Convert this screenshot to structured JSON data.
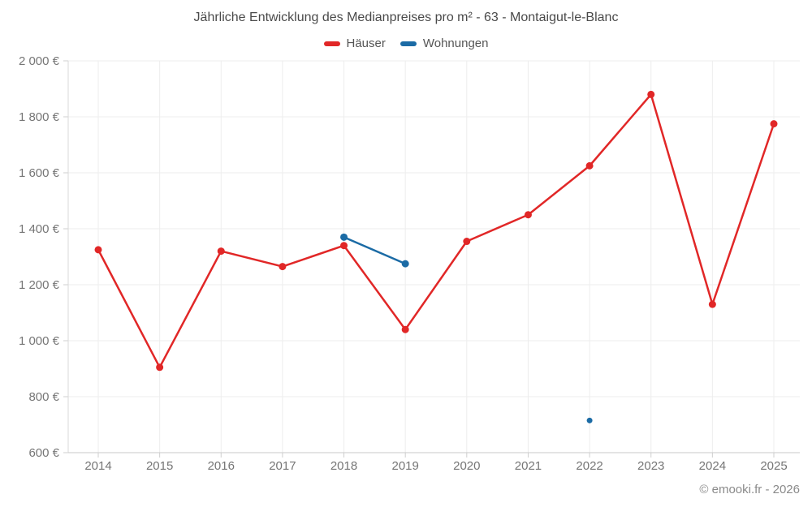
{
  "chart_data": {
    "type": "line",
    "title": "Jährliche Entwicklung des Medianpreises pro m² - 63 - Montaigut-le-Blanc",
    "x": [
      2014,
      2015,
      2016,
      2017,
      2018,
      2019,
      2020,
      2021,
      2022,
      2023,
      2024,
      2025
    ],
    "xtick_labels": [
      "2014",
      "2015",
      "2016",
      "2017",
      "2018",
      "2019",
      "2020",
      "2021",
      "2022",
      "2023",
      "2024",
      "2025"
    ],
    "series": [
      {
        "name": "Häuser",
        "color": "#e12727",
        "values": [
          1325,
          905,
          1320,
          1265,
          1340,
          1040,
          1355,
          1450,
          1625,
          1880,
          1130,
          1775
        ]
      },
      {
        "name": "Wohnungen",
        "color": "#1b6ba5",
        "values": [
          null,
          null,
          null,
          null,
          1370,
          1275,
          null,
          null,
          715,
          null,
          null,
          null
        ]
      }
    ],
    "ylim": [
      600,
      2000
    ],
    "ytick_step": 200,
    "yticks": [
      {
        "value": 2000,
        "label": "2 000 €"
      },
      {
        "value": 1800,
        "label": "1 800 €"
      },
      {
        "value": 1600,
        "label": "1 600 €"
      },
      {
        "value": 1400,
        "label": "1 400 €"
      },
      {
        "value": 1200,
        "label": "1 200 €"
      },
      {
        "value": 1000,
        "label": "1 000 €"
      },
      {
        "value": 800,
        "label": "800 €"
      },
      {
        "value": 600,
        "label": "600 €"
      }
    ],
    "currency_unit": "€",
    "grid": true,
    "legend_position": "top"
  },
  "footer": {
    "credit": "© emooki.fr - 2026"
  }
}
